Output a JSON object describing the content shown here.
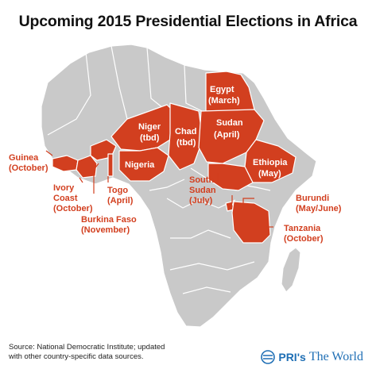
{
  "title": "Upcoming 2015 Presidential Elections in Africa",
  "colors": {
    "election": "#d23f1f",
    "land": "#c9c9c9",
    "logo": "#1f6fb5"
  },
  "countries": [
    {
      "name": "Egypt",
      "date": "(March)"
    },
    {
      "name": "Niger",
      "date": "(tbd)"
    },
    {
      "name": "Chad",
      "date": "(tbd)"
    },
    {
      "name": "Sudan",
      "date": "(April)"
    },
    {
      "name": "Nigeria",
      "date": ""
    },
    {
      "name": "Ethiopia",
      "date": "(May)"
    },
    {
      "name": "Guinea",
      "date": "(October)"
    },
    {
      "name": "Ivory Coast",
      "line1": "Ivory",
      "line2": "Coast",
      "date": "(October)"
    },
    {
      "name": "Togo",
      "date": "(April)"
    },
    {
      "name": "Burkina Faso",
      "date": "(November)"
    },
    {
      "name": "South Sudan",
      "line1": "South",
      "line2": "Sudan",
      "date": "(July)"
    },
    {
      "name": "Burundi",
      "date": "(May/June)"
    },
    {
      "name": "Tanzania",
      "date": "(October)"
    }
  ],
  "source": {
    "line1": "Source: National Democratic Institute; updated",
    "line2": "with other country-specific data sources."
  },
  "logo": {
    "icon": "pri-logo-icon",
    "brand": "PRI's",
    "name": "The World"
  }
}
